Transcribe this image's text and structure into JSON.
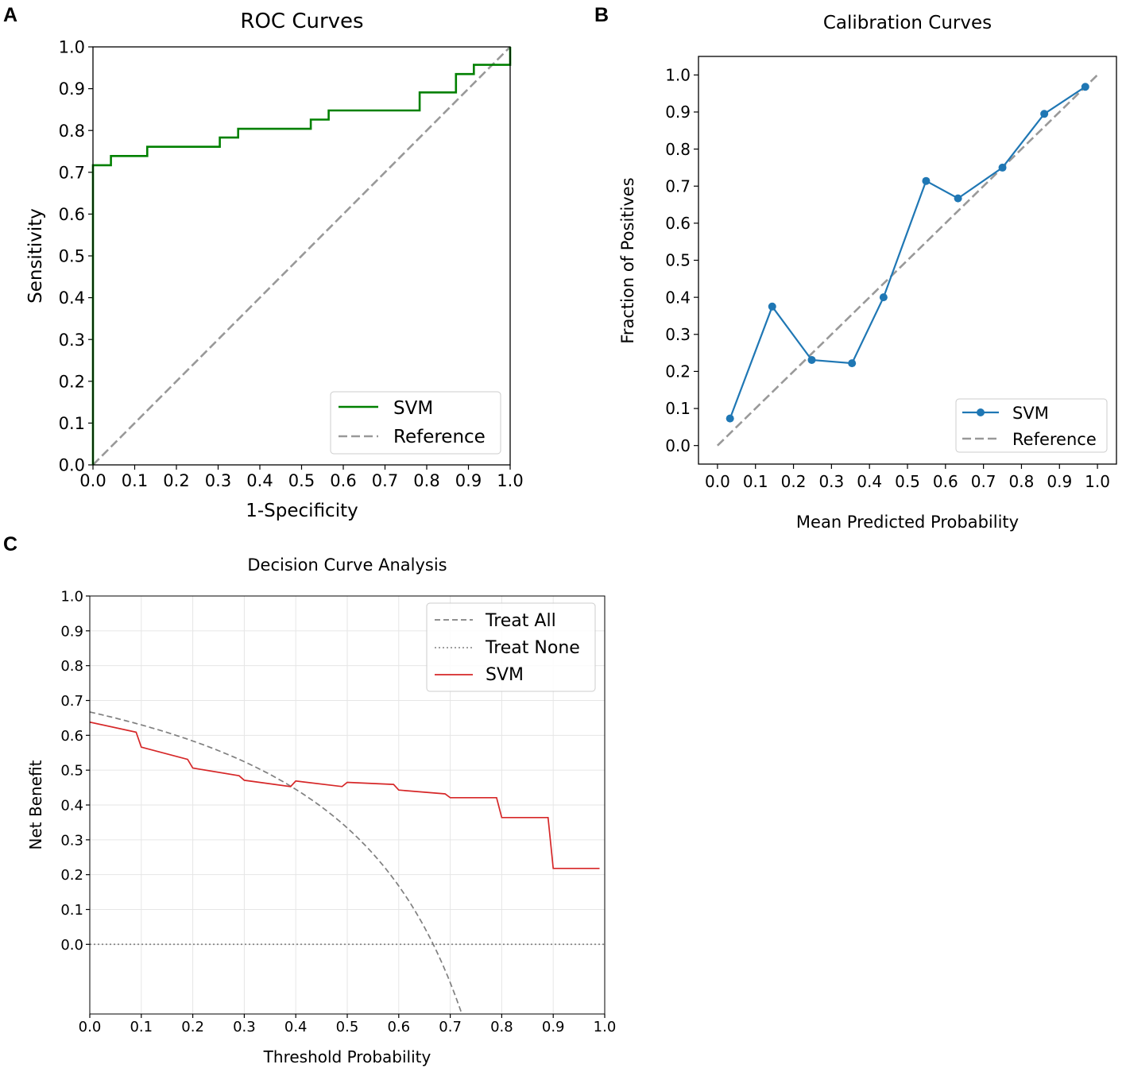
{
  "panels": {
    "a": {
      "letter": "A"
    },
    "b": {
      "letter": "B"
    },
    "c": {
      "letter": "C"
    }
  },
  "colors": {
    "roc": "#008000",
    "calibration": "#1f77b4",
    "dca": "#d62728",
    "reference": "#999999",
    "treat_all": "#808080",
    "treat_none": "#808080",
    "grid": "#e6e6e6"
  },
  "chart_data": [
    {
      "id": "roc",
      "type": "line",
      "title": "ROC Curves",
      "xlabel": "1-Specificity",
      "ylabel": "Sensitivity",
      "xlim": [
        0,
        1
      ],
      "ylim": [
        0,
        1
      ],
      "xticks": [
        "0.0",
        "0.1",
        "0.2",
        "0.3",
        "0.4",
        "0.5",
        "0.6",
        "0.7",
        "0.8",
        "0.9",
        "1.0"
      ],
      "yticks": [
        "0.0",
        "0.1",
        "0.2",
        "0.3",
        "0.4",
        "0.5",
        "0.6",
        "0.7",
        "0.8",
        "0.9",
        "1.0"
      ],
      "grid": false,
      "legend": {
        "position": "lower-right",
        "entries": [
          "SVM",
          "Reference"
        ]
      },
      "series": [
        {
          "name": "SVM",
          "style": "solid",
          "x": [
            0,
            0,
            0.043,
            0.043,
            0.13,
            0.13,
            0.304,
            0.304,
            0.348,
            0.348,
            0.522,
            0.522,
            0.565,
            0.565,
            0.783,
            0.783,
            0.87,
            0.87,
            0.913,
            0.913,
            1.0,
            1.0
          ],
          "y": [
            0,
            0.717,
            0.717,
            0.739,
            0.739,
            0.761,
            0.761,
            0.783,
            0.783,
            0.804,
            0.804,
            0.826,
            0.826,
            0.848,
            0.848,
            0.891,
            0.891,
            0.935,
            0.935,
            0.957,
            0.957,
            1.0
          ]
        },
        {
          "name": "Reference",
          "style": "dashed",
          "x": [
            0,
            1
          ],
          "y": [
            0,
            1
          ]
        }
      ]
    },
    {
      "id": "calibration",
      "type": "line",
      "title": "Calibration Curves",
      "xlabel": "Mean Predicted Probability",
      "ylabel": "Fraction of Positives",
      "xlim": [
        -0.05,
        1.05
      ],
      "ylim": [
        -0.05,
        1.05
      ],
      "xticks": [
        "0.0",
        "0.1",
        "0.2",
        "0.3",
        "0.4",
        "0.5",
        "0.6",
        "0.7",
        "0.8",
        "0.9",
        "1.0"
      ],
      "yticks": [
        "0.0",
        "0.1",
        "0.2",
        "0.3",
        "0.4",
        "0.5",
        "0.6",
        "0.7",
        "0.8",
        "0.9",
        "1.0"
      ],
      "grid": false,
      "legend": {
        "position": "lower-right",
        "entries": [
          "SVM",
          "Reference"
        ]
      },
      "series": [
        {
          "name": "SVM",
          "style": "solid-markers",
          "x": [
            0.033,
            0.144,
            0.248,
            0.354,
            0.437,
            0.549,
            0.633,
            0.75,
            0.86,
            0.968
          ],
          "y": [
            0.073,
            0.375,
            0.231,
            0.222,
            0.4,
            0.714,
            0.667,
            0.75,
            0.895,
            0.968
          ]
        },
        {
          "name": "Reference",
          "style": "dashed",
          "x": [
            0,
            1
          ],
          "y": [
            0,
            1
          ]
        }
      ]
    },
    {
      "id": "dca",
      "type": "line",
      "title": "Decision Curve Analysis",
      "xlabel": "Threshold Probability",
      "ylabel": "Net Benefit",
      "xlim": [
        0,
        1
      ],
      "ylim": [
        -0.2,
        1
      ],
      "xticks": [
        "0.0",
        "0.1",
        "0.2",
        "0.3",
        "0.4",
        "0.5",
        "0.6",
        "0.7",
        "0.8",
        "0.9",
        "1.0"
      ],
      "yticks": [
        "0.0",
        "0.1",
        "0.2",
        "0.3",
        "0.4",
        "0.5",
        "0.6",
        "0.7",
        "0.8",
        "0.9",
        "1.0"
      ],
      "grid": true,
      "legend": {
        "position": "upper-right",
        "entries": [
          "Treat All",
          "Treat None",
          "SVM"
        ]
      },
      "series": [
        {
          "name": "Treat All",
          "style": "dashed",
          "formula": "prevalence - (1 - prevalence) * t / (1 - t)",
          "prevalence": 0.667
        },
        {
          "name": "Treat None",
          "style": "dotted",
          "x": [
            0,
            1
          ],
          "y": [
            0,
            0
          ]
        },
        {
          "name": "SVM",
          "style": "solid",
          "x": [
            0,
            0.09,
            0.1,
            0.19,
            0.2,
            0.29,
            0.3,
            0.39,
            0.4,
            0.49,
            0.5,
            0.59,
            0.6,
            0.69,
            0.7,
            0.79,
            0.8,
            0.89,
            0.9,
            0.99
          ],
          "y": [
            0.638,
            0.609,
            0.566,
            0.531,
            0.506,
            0.484,
            0.471,
            0.453,
            0.469,
            0.453,
            0.465,
            0.459,
            0.443,
            0.432,
            0.421,
            0.421,
            0.364,
            0.364,
            0.218,
            0.218
          ]
        }
      ]
    }
  ]
}
